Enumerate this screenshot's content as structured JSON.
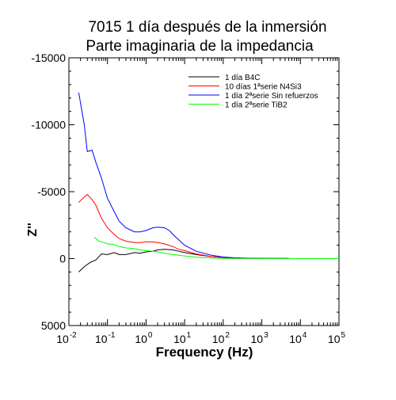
{
  "chart_data": {
    "type": "line",
    "title": [
      "7015 1 día después de la inmersión",
      "Parte imaginaria de la impedancia"
    ],
    "xlabel": "Frequency (Hz)",
    "ylabel": "Z''",
    "x_scale": "log",
    "xlim": [
      0.01,
      100000
    ],
    "ylim": [
      5000,
      -15000
    ],
    "y_inverted": true,
    "grid": false,
    "legend_position": "top-right",
    "x_ticks": [
      {
        "value": 0.01,
        "base": "10",
        "exp": "-2"
      },
      {
        "value": 0.1,
        "base": "10",
        "exp": "-1"
      },
      {
        "value": 1,
        "base": "10",
        "exp": "0"
      },
      {
        "value": 10,
        "base": "10",
        "exp": "1"
      },
      {
        "value": 100,
        "base": "10",
        "exp": "2"
      },
      {
        "value": 1000,
        "base": "10",
        "exp": "3"
      },
      {
        "value": 10000,
        "base": "10",
        "exp": "4"
      },
      {
        "value": 100000,
        "base": "10",
        "exp": "5"
      }
    ],
    "y_ticks": [
      {
        "value": -15000,
        "label": "-15000"
      },
      {
        "value": -10000,
        "label": "-10000"
      },
      {
        "value": -5000,
        "label": "-5000"
      },
      {
        "value": 0,
        "label": "0"
      },
      {
        "value": 5000,
        "label": "5000"
      }
    ],
    "series": [
      {
        "name": "1 día B4C",
        "color": "#000000",
        "x": [
          0.018,
          0.025,
          0.035,
          0.05,
          0.07,
          0.1,
          0.15,
          0.2,
          0.3,
          0.5,
          0.7,
          1,
          1.5,
          2,
          3,
          5,
          7,
          10,
          20,
          50,
          100,
          200,
          500,
          1000,
          5000
        ],
        "y": [
          1000,
          600,
          300,
          100,
          -350,
          -300,
          -450,
          -300,
          -300,
          -450,
          -400,
          -500,
          -550,
          -650,
          -700,
          -650,
          -550,
          -450,
          -300,
          -150,
          -80,
          -40,
          -20,
          -10,
          -5
        ]
      },
      {
        "name": "10 días 1ªserie N4Si3",
        "color": "#ff0000",
        "x": [
          0.018,
          0.025,
          0.03,
          0.04,
          0.05,
          0.07,
          0.1,
          0.15,
          0.2,
          0.3,
          0.5,
          0.7,
          1,
          1.5,
          2,
          3,
          5,
          7,
          10,
          20,
          50,
          100,
          200,
          500,
          1000,
          5000
        ],
        "y": [
          -4200,
          -4600,
          -4800,
          -4400,
          -4000,
          -3000,
          -2300,
          -1800,
          -1500,
          -1300,
          -1200,
          -1200,
          -1250,
          -1250,
          -1200,
          -1100,
          -900,
          -700,
          -600,
          -350,
          -150,
          -80,
          -40,
          -15,
          -10,
          -5
        ]
      },
      {
        "name": "1 día 2ªserie Sin refuerzos",
        "color": "#0000ff",
        "x": [
          0.018,
          0.025,
          0.03,
          0.04,
          0.05,
          0.07,
          0.1,
          0.15,
          0.2,
          0.3,
          0.5,
          0.7,
          1,
          1.5,
          2,
          3,
          4,
          5,
          7,
          10,
          20,
          50,
          100,
          200,
          500,
          1000,
          5000
        ],
        "y": [
          -12400,
          -10000,
          -8000,
          -8100,
          -7200,
          -6000,
          -4500,
          -3500,
          -2800,
          -2300,
          -2000,
          -2000,
          -2100,
          -2300,
          -2350,
          -2300,
          -2100,
          -1800,
          -1400,
          -1000,
          -550,
          -250,
          -120,
          -60,
          -30,
          -20,
          -10
        ]
      },
      {
        "name": "1 día 2ªserie TiB2",
        "color": "#00ff00",
        "x": [
          0.045,
          0.06,
          0.08,
          0.1,
          0.15,
          0.2,
          0.3,
          0.5,
          0.7,
          1,
          1.5,
          2,
          3,
          5,
          7,
          10,
          20,
          50,
          100,
          1000,
          100000
        ],
        "y": [
          -1600,
          -1300,
          -1200,
          -1100,
          -1050,
          -900,
          -800,
          -750,
          -650,
          -600,
          -550,
          -500,
          -400,
          -300,
          -250,
          -200,
          -100,
          -50,
          -20,
          -5,
          0
        ]
      }
    ]
  }
}
